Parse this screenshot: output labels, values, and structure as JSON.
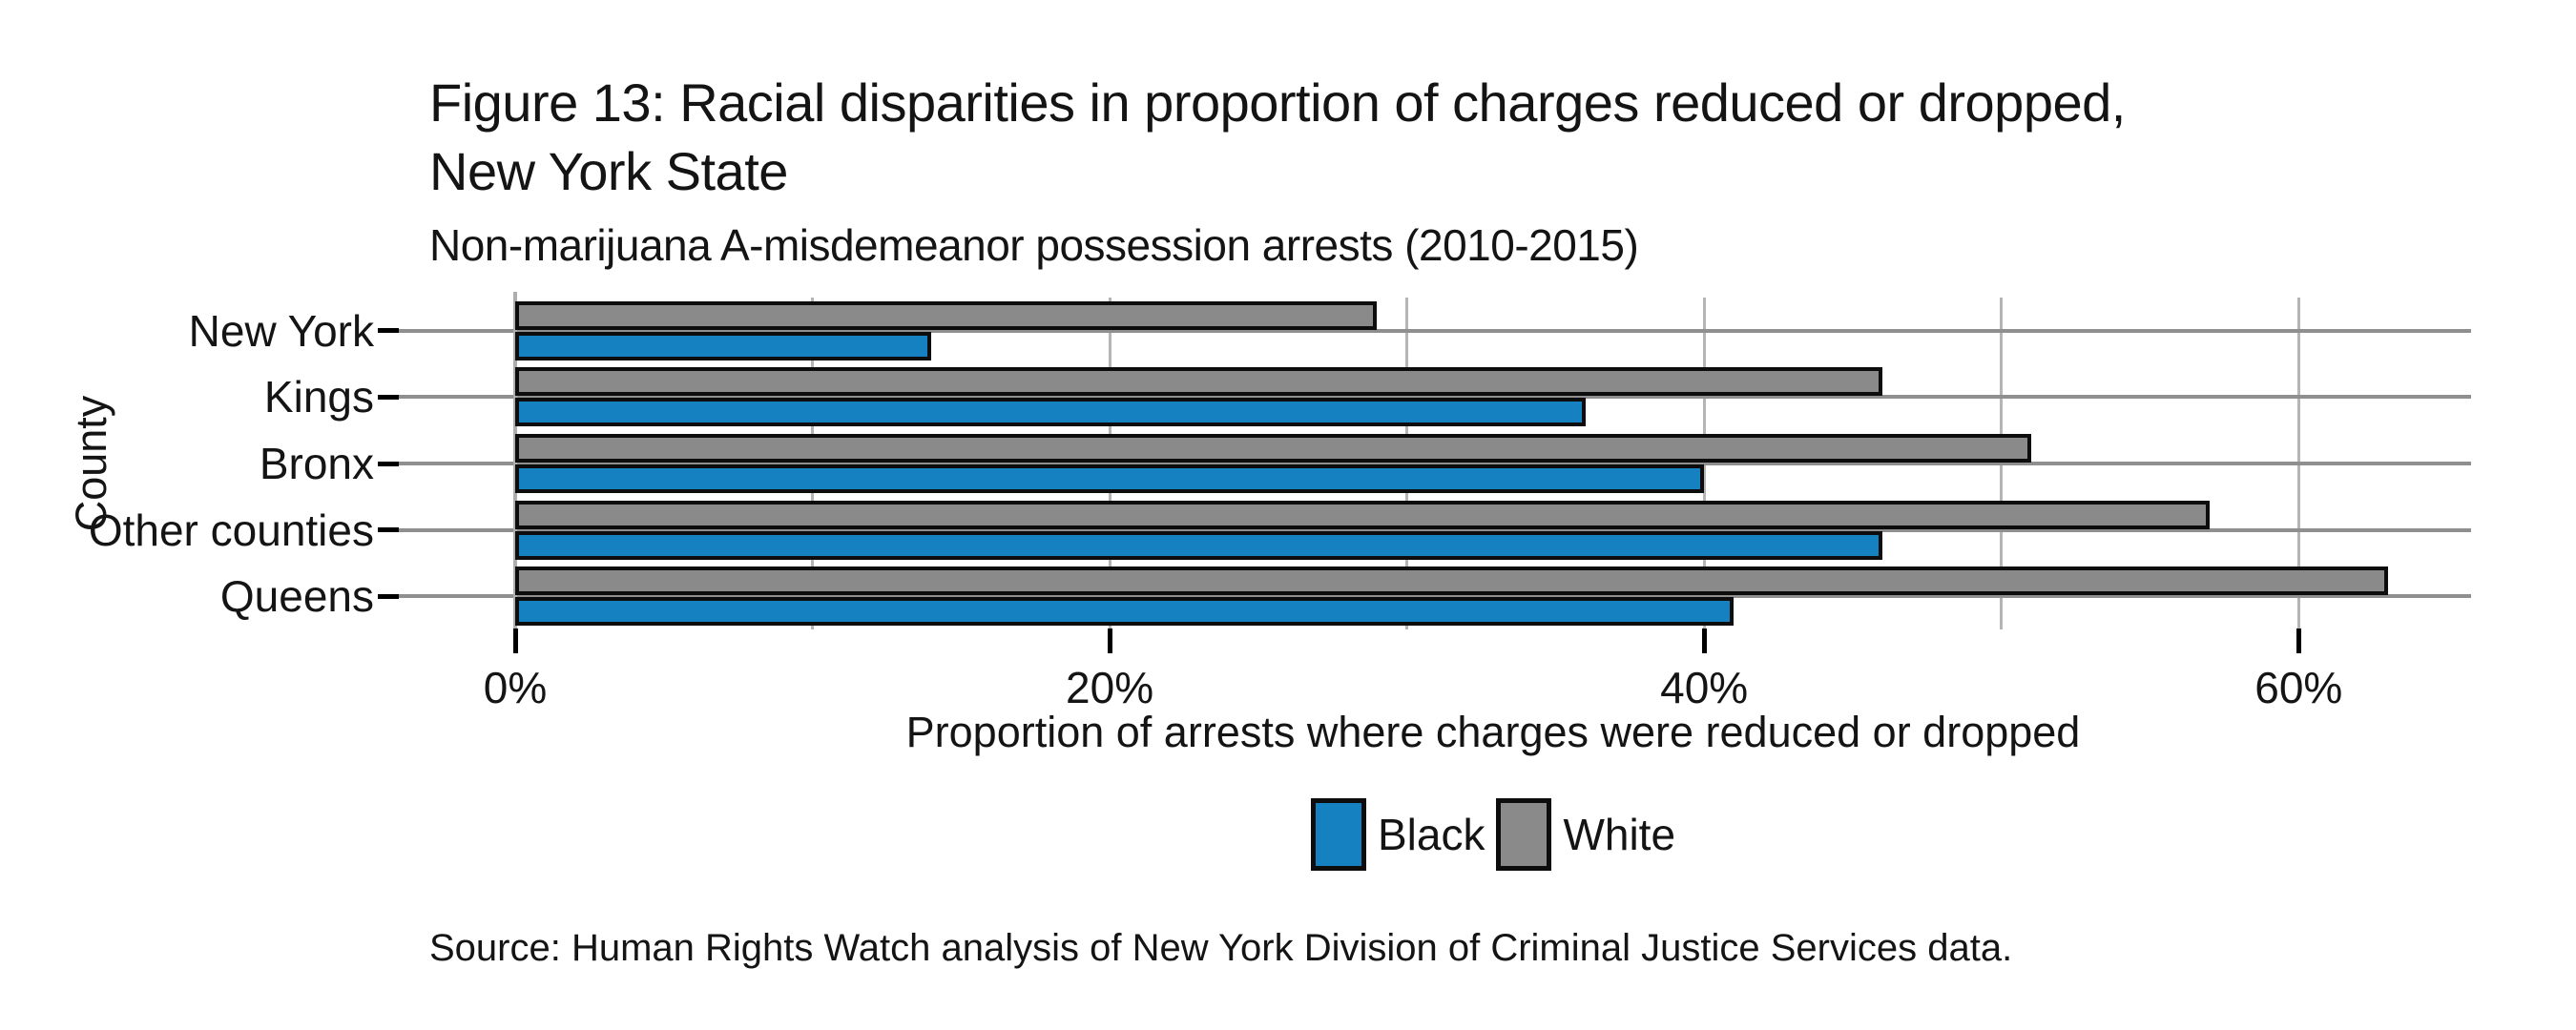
{
  "header": {
    "title_line1": "Figure 13: Racial disparities in proportion of charges reduced or dropped,",
    "title_line2": "New York State",
    "subtitle": "Non-marijuana A-misdemeanor possession arrests (2010-2015)"
  },
  "footer": {
    "source": "Source: Human Rights Watch analysis of New York Division of Criminal Justice Services data."
  },
  "chart_data": {
    "type": "bar",
    "orientation": "horizontal",
    "title": "Figure 13: Racial disparities in proportion of charges reduced or dropped, New York State",
    "subtitle": "Non-marijuana A-misdemeanor possession arrests (2010-2015)",
    "xlabel": "Proportion of arrests where charges were reduced or dropped",
    "ylabel": "County",
    "categories": [
      "New York",
      "Kings",
      "Bronx",
      "Other counties",
      "Queens"
    ],
    "series": [
      {
        "name": "Black",
        "color": "#1581c1",
        "values": [
          14,
          36,
          40,
          46,
          41
        ]
      },
      {
        "name": "White",
        "color": "#8a8a8a",
        "values": [
          29,
          46,
          51,
          57,
          63
        ]
      }
    ],
    "group_order_top_to_bottom": [
      "White",
      "Black"
    ],
    "unit": "%",
    "x_tick_labels": [
      "0%",
      "20%",
      "40%",
      "60%"
    ],
    "x_tick_values": [
      0,
      20,
      40,
      60
    ],
    "grid_x_values": [
      10,
      20,
      30,
      40,
      50,
      60
    ],
    "xlim": [
      0,
      65.8
    ],
    "grid": true,
    "legend_position": "bottom",
    "legend_labels": [
      "Black",
      "White"
    ],
    "source": "Source: Human Rights Watch analysis of New York Division of Criminal Justice Services data."
  },
  "style": {
    "bar_border_color": "#0d0d0d",
    "grid_color_horizontal": "#8f8f8f",
    "grid_color_vertical": "#b5b5b5",
    "axis_line_color": "#aeaeae",
    "text_color": "#141414",
    "background": "#ffffff"
  }
}
